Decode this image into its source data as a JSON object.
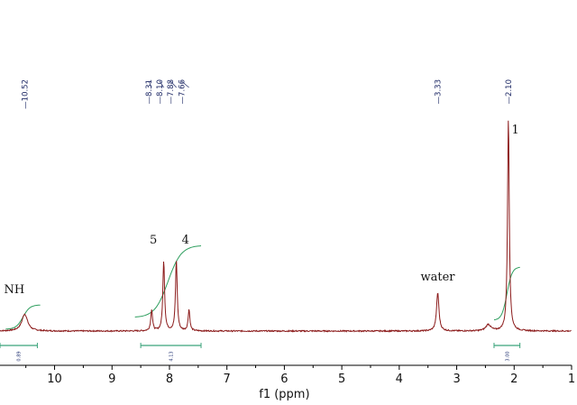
{
  "chart_data": {
    "type": "line",
    "xlabel": "f1 (ppm)",
    "xlim": [
      10.95,
      1.0
    ],
    "x_reversed": true,
    "x_ticks": [
      10,
      9,
      8,
      7,
      6,
      5,
      4,
      3,
      2,
      1
    ],
    "grid": false,
    "legend": "none",
    "peak_labels": [
      "10.52",
      "8.31",
      "8.10",
      "7.88",
      "7.66",
      "3.33",
      "2.10"
    ],
    "peaks": [
      {
        "x": 10.52,
        "y": 0.08
      },
      {
        "x": 8.31,
        "y": 0.1
      },
      {
        "x": 8.1,
        "y": 0.33
      },
      {
        "x": 7.88,
        "y": 0.33
      },
      {
        "x": 7.66,
        "y": 0.1
      },
      {
        "x": 3.33,
        "y": 0.18
      },
      {
        "x": 2.45,
        "y": 0.03
      },
      {
        "x": 2.1,
        "y": 1.0
      }
    ],
    "annotations": [
      {
        "text": "NH",
        "x": 10.7
      },
      {
        "text": "5",
        "x": 8.28
      },
      {
        "text": "4",
        "x": 7.72
      },
      {
        "text": "water",
        "x": 3.33
      },
      {
        "text": "1",
        "x": 1.98
      }
    ],
    "integrals": [
      {
        "from": 11.0,
        "to": 10.3,
        "value": "0.89"
      },
      {
        "from": 8.5,
        "to": 7.45,
        "value": "4.13"
      },
      {
        "from": 2.35,
        "to": 1.9,
        "value": "3.00"
      }
    ],
    "colors": {
      "spectrum": "#8b1a1a",
      "integral_curve": "#2e9e5e",
      "integral_bar": "#3aa37a",
      "peak_label": "#1f2a66",
      "axis": "#000000"
    }
  }
}
